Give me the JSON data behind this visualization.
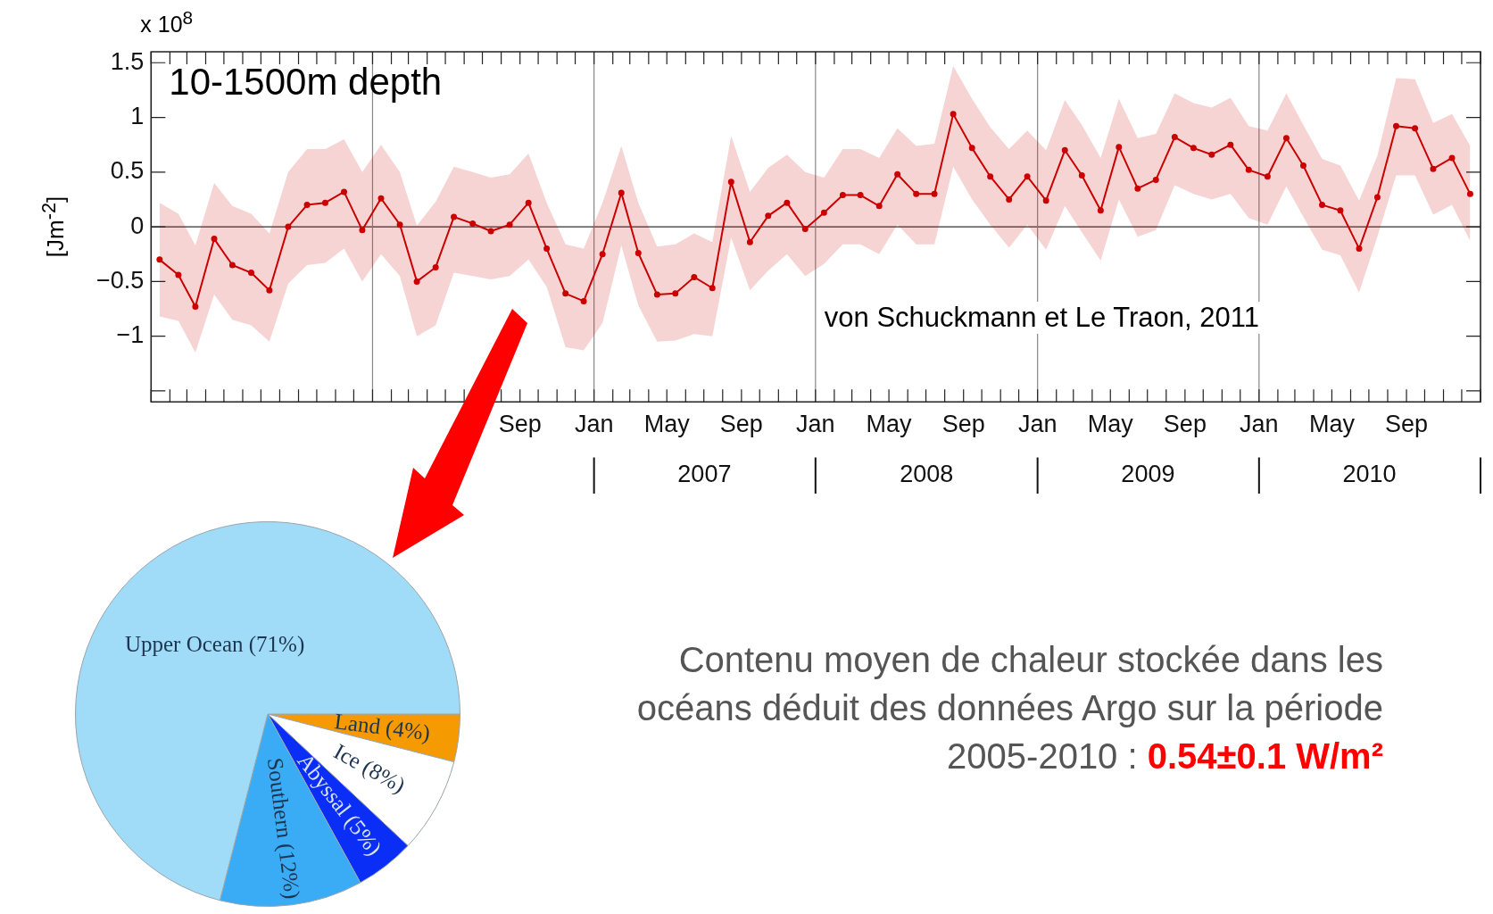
{
  "chart_data": [
    {
      "type": "line",
      "ylabel": "[Jm$^{-2}$]",
      "annotations": [
        "10-1500m depth",
        "x 10$^{8}$",
        "von Schuckmann et Le Traon, 2011",
        "Contenu moyen de chaleur stockée dans les océans déduit des données Argo sur la période 2005-2010 :",
        "0.54±0.1 W/m²"
      ],
      "x": [
        "2005-01-15",
        "2005-02-15",
        "2005-03-15",
        "2005-04-15",
        "2005-05-15",
        "2005-06-15",
        "2005-07-15",
        "2005-08-15",
        "2005-09-15",
        "2005-10-15",
        "2005-11-15",
        "2005-12-15",
        "2006-01-15",
        "2006-02-15",
        "2006-03-15",
        "2006-04-15",
        "2006-05-15",
        "2006-06-15",
        "2006-07-15",
        "2006-08-15",
        "2006-09-15",
        "2006-10-15",
        "2006-11-15",
        "2006-12-15",
        "2007-01-15",
        "2007-02-15",
        "2007-03-15",
        "2007-04-15",
        "2007-05-15",
        "2007-06-15",
        "2007-07-15",
        "2007-08-15",
        "2007-09-15",
        "2007-10-15",
        "2007-11-15",
        "2007-12-15",
        "2008-01-15",
        "2008-02-15",
        "2008-03-15",
        "2008-04-15",
        "2008-05-15",
        "2008-06-15",
        "2008-07-15",
        "2008-08-15",
        "2008-09-15",
        "2008-10-15",
        "2008-11-15",
        "2008-12-15",
        "2009-01-15",
        "2009-02-15",
        "2009-03-15",
        "2009-04-15",
        "2009-05-15",
        "2009-06-15",
        "2009-07-15",
        "2009-08-15",
        "2009-09-15",
        "2009-10-15",
        "2009-11-15",
        "2009-12-15",
        "2010-01-15",
        "2010-02-15",
        "2010-03-15",
        "2010-04-15",
        "2010-05-15",
        "2010-06-15",
        "2010-07-15",
        "2010-08-15",
        "2010-09-15",
        "2010-10-15",
        "2010-11-15",
        "2010-12-15"
      ],
      "series": [
        {
          "color": "#cc0000",
          "values": [
            -0.3,
            -0.44,
            -0.73,
            -0.11,
            -0.35,
            -0.42,
            -0.58,
            0.0,
            0.2,
            0.22,
            0.32,
            -0.03,
            0.26,
            0.02,
            -0.5,
            -0.37,
            0.09,
            0.03,
            -0.04,
            0.02,
            0.22,
            -0.2,
            -0.61,
            -0.68,
            -0.25,
            0.31,
            -0.24,
            -0.62,
            -0.61,
            -0.46,
            -0.56,
            0.41,
            -0.14,
            0.1,
            0.22,
            -0.02,
            0.13,
            0.29,
            0.29,
            0.19,
            0.48,
            0.3,
            0.3,
            1.03,
            0.72,
            0.46,
            0.25,
            0.46,
            0.24,
            0.7,
            0.47,
            0.15,
            0.73,
            0.35,
            0.43,
            0.82,
            0.72,
            0.66,
            0.75,
            0.52,
            0.46,
            0.81,
            0.56,
            0.2,
            0.15,
            -0.2,
            0.27,
            0.92,
            0.9,
            0.53,
            0.63,
            0.3
          ],
          "upper": [
            0.22,
            0.12,
            -0.17,
            0.4,
            0.19,
            0.12,
            -0.06,
            0.5,
            0.71,
            0.71,
            0.8,
            0.5,
            0.75,
            0.5,
            0.01,
            0.23,
            0.55,
            0.5,
            0.45,
            0.48,
            0.67,
            0.22,
            -0.16,
            -0.2,
            0.22,
            0.74,
            0.22,
            -0.18,
            -0.16,
            -0.06,
            -0.14,
            0.83,
            0.32,
            0.54,
            0.66,
            0.5,
            0.45,
            0.71,
            0.71,
            0.63,
            0.9,
            0.74,
            0.76,
            1.47,
            1.17,
            0.91,
            0.71,
            0.88,
            0.7,
            1.16,
            0.93,
            0.63,
            1.17,
            0.81,
            0.85,
            1.22,
            1.13,
            1.09,
            1.18,
            0.92,
            0.88,
            1.22,
            0.93,
            0.62,
            0.56,
            0.24,
            0.65,
            1.36,
            1.35,
            0.95,
            1.03,
            0.74
          ],
          "lower": [
            -0.82,
            -0.86,
            -1.15,
            -0.62,
            -0.85,
            -0.9,
            -1.05,
            -0.52,
            -0.35,
            -0.33,
            -0.2,
            -0.5,
            -0.25,
            -0.45,
            -1.0,
            -0.9,
            -0.42,
            -0.45,
            -0.48,
            -0.45,
            -0.3,
            -0.55,
            -1.1,
            -1.13,
            -0.88,
            -0.17,
            -0.72,
            -1.05,
            -1.04,
            -0.98,
            -1.0,
            -0.1,
            -0.58,
            -0.4,
            -0.25,
            -0.45,
            -0.34,
            -0.16,
            -0.16,
            -0.25,
            0.02,
            -0.16,
            -0.16,
            0.55,
            0.25,
            0.02,
            -0.19,
            0.02,
            -0.21,
            0.19,
            -0.05,
            -0.31,
            0.25,
            -0.09,
            -0.03,
            0.38,
            0.3,
            0.25,
            0.3,
            0.08,
            0.02,
            0.37,
            0.09,
            -0.21,
            -0.26,
            -0.6,
            -0.09,
            0.47,
            0.47,
            0.11,
            0.2,
            -0.13
          ]
        }
      ],
      "marker": "circle",
      "line_style": "solid",
      "grid": false,
      "legend": false,
      "xlim": [
        "2005-01",
        "2011-01"
      ],
      "xticks": [
        {
          "value": "2005-01",
          "label": null
        },
        {
          "value": "2005-02",
          "label": null
        },
        {
          "value": "2005-03",
          "label": null
        },
        {
          "value": "2005-04",
          "label": null
        },
        {
          "value": "2005-05",
          "label": null
        },
        {
          "value": "2005-06",
          "label": null
        },
        {
          "value": "2005-07",
          "label": null
        },
        {
          "value": "2005-08",
          "label": null
        },
        {
          "value": "2005-09",
          "label": null
        },
        {
          "value": "2005-10",
          "label": null
        },
        {
          "value": "2005-11",
          "label": null
        },
        {
          "value": "2005-12",
          "label": null
        },
        {
          "value": "2006-01",
          "label": null
        },
        {
          "value": "2006-02",
          "label": null
        },
        {
          "value": "2006-03",
          "label": null
        },
        {
          "value": "2006-04",
          "label": null
        },
        {
          "value": "2006-05",
          "label": null
        },
        {
          "value": "2006-06",
          "label": null
        },
        {
          "value": "2006-07",
          "label": null
        },
        {
          "value": "2006-08",
          "label": null
        },
        {
          "value": "2006-09",
          "label": "Sep"
        },
        {
          "value": "2006-10",
          "label": null
        },
        {
          "value": "2006-11",
          "label": null
        },
        {
          "value": "2006-12",
          "label": null
        },
        {
          "value": "2007-01",
          "label": "Jan"
        },
        {
          "value": "2007-02",
          "label": null
        },
        {
          "value": "2007-03",
          "label": null
        },
        {
          "value": "2007-04",
          "label": null
        },
        {
          "value": "2007-05",
          "label": "May"
        },
        {
          "value": "2007-06",
          "label": null
        },
        {
          "value": "2007-07",
          "label": null
        },
        {
          "value": "2007-08",
          "label": null
        },
        {
          "value": "2007-09",
          "label": "Sep"
        },
        {
          "value": "2007-10",
          "label": null
        },
        {
          "value": "2007-11",
          "label": null
        },
        {
          "value": "2007-12",
          "label": null
        },
        {
          "value": "2008-01",
          "label": "Jan"
        },
        {
          "value": "2008-02",
          "label": null
        },
        {
          "value": "2008-03",
          "label": null
        },
        {
          "value": "2008-04",
          "label": null
        },
        {
          "value": "2008-05",
          "label": "May"
        },
        {
          "value": "2008-06",
          "label": null
        },
        {
          "value": "2008-07",
          "label": null
        },
        {
          "value": "2008-08",
          "label": null
        },
        {
          "value": "2008-09",
          "label": "Sep"
        },
        {
          "value": "2008-10",
          "label": null
        },
        {
          "value": "2008-11",
          "label": null
        },
        {
          "value": "2008-12",
          "label": null
        },
        {
          "value": "2009-01",
          "label": "Jan"
        },
        {
          "value": "2009-02",
          "label": null
        },
        {
          "value": "2009-03",
          "label": null
        },
        {
          "value": "2009-04",
          "label": null
        },
        {
          "value": "2009-05",
          "label": "May"
        },
        {
          "value": "2009-06",
          "label": null
        },
        {
          "value": "2009-07",
          "label": null
        },
        {
          "value": "2009-08",
          "label": null
        },
        {
          "value": "2009-09",
          "label": "Sep"
        },
        {
          "value": "2009-10",
          "label": null
        },
        {
          "value": "2009-11",
          "label": null
        },
        {
          "value": "2009-12",
          "label": null
        },
        {
          "value": "2010-01",
          "label": "Jan"
        },
        {
          "value": "2010-02",
          "label": null
        },
        {
          "value": "2010-03",
          "label": null
        },
        {
          "value": "2010-04",
          "label": null
        },
        {
          "value": "2010-05",
          "label": "May"
        },
        {
          "value": "2010-06",
          "label": null
        },
        {
          "value": "2010-07",
          "label": null
        },
        {
          "value": "2010-08",
          "label": null
        },
        {
          "value": "2010-09",
          "label": "Sep"
        },
        {
          "value": "2010-10",
          "label": null
        },
        {
          "value": "2010-11",
          "label": null
        },
        {
          "value": "2010-12",
          "label": null
        },
        {
          "value": "2011-01",
          "label": null
        }
      ],
      "x2lim": [
        "2005-01",
        "2011-01"
      ],
      "x2ticks": [
        {
          "value": "2007-01",
          "label": null
        },
        {
          "value": "2007-07-02",
          "label": "2007"
        },
        {
          "value": "2008-01",
          "label": null
        },
        {
          "value": "2008-07-02",
          "label": "2008"
        },
        {
          "value": "2009-01",
          "label": null
        },
        {
          "value": "2009-07-02",
          "label": "2009"
        },
        {
          "value": "2010-01",
          "label": null
        },
        {
          "value": "2010-07-02",
          "label": "2010"
        },
        {
          "value": "2011-01",
          "label": null
        }
      ],
      "ylim": [
        -1.6,
        1.6
      ],
      "yticks": [
        {
          "value": -1.5,
          "label": null
        },
        {
          "value": -1,
          "label": "−1"
        },
        {
          "value": -0.5,
          "label": "−0.5"
        },
        0,
        0.5,
        1,
        1.5
      ],
      "ref_lines": [
        {
          "axis": "y",
          "value": 0,
          "color": "#333333"
        },
        {
          "axis": "x",
          "value": "2006-01",
          "color": "#888888"
        },
        {
          "axis": "x",
          "value": "2007-01",
          "color": "#888888"
        },
        {
          "axis": "x",
          "value": "2008-01",
          "color": "#888888"
        },
        {
          "axis": "x",
          "value": "2009-01",
          "color": "#888888"
        },
        {
          "axis": "x",
          "value": "2010-01",
          "color": "#888888"
        }
      ]
    },
    {
      "type": "pie",
      "categories": [
        "Land (4%)",
        "Ice (8%)",
        "Abyssal (5%)",
        "Southern (12%)",
        "Upper Ocean (71%)"
      ],
      "values": [
        4,
        8,
        5,
        12,
        71
      ],
      "colors": [
        "#f59a00",
        "#ffffff",
        "#0a2ef5",
        "#3aacf5",
        "#a0dcf8"
      ],
      "legend": false
    }
  ]
}
